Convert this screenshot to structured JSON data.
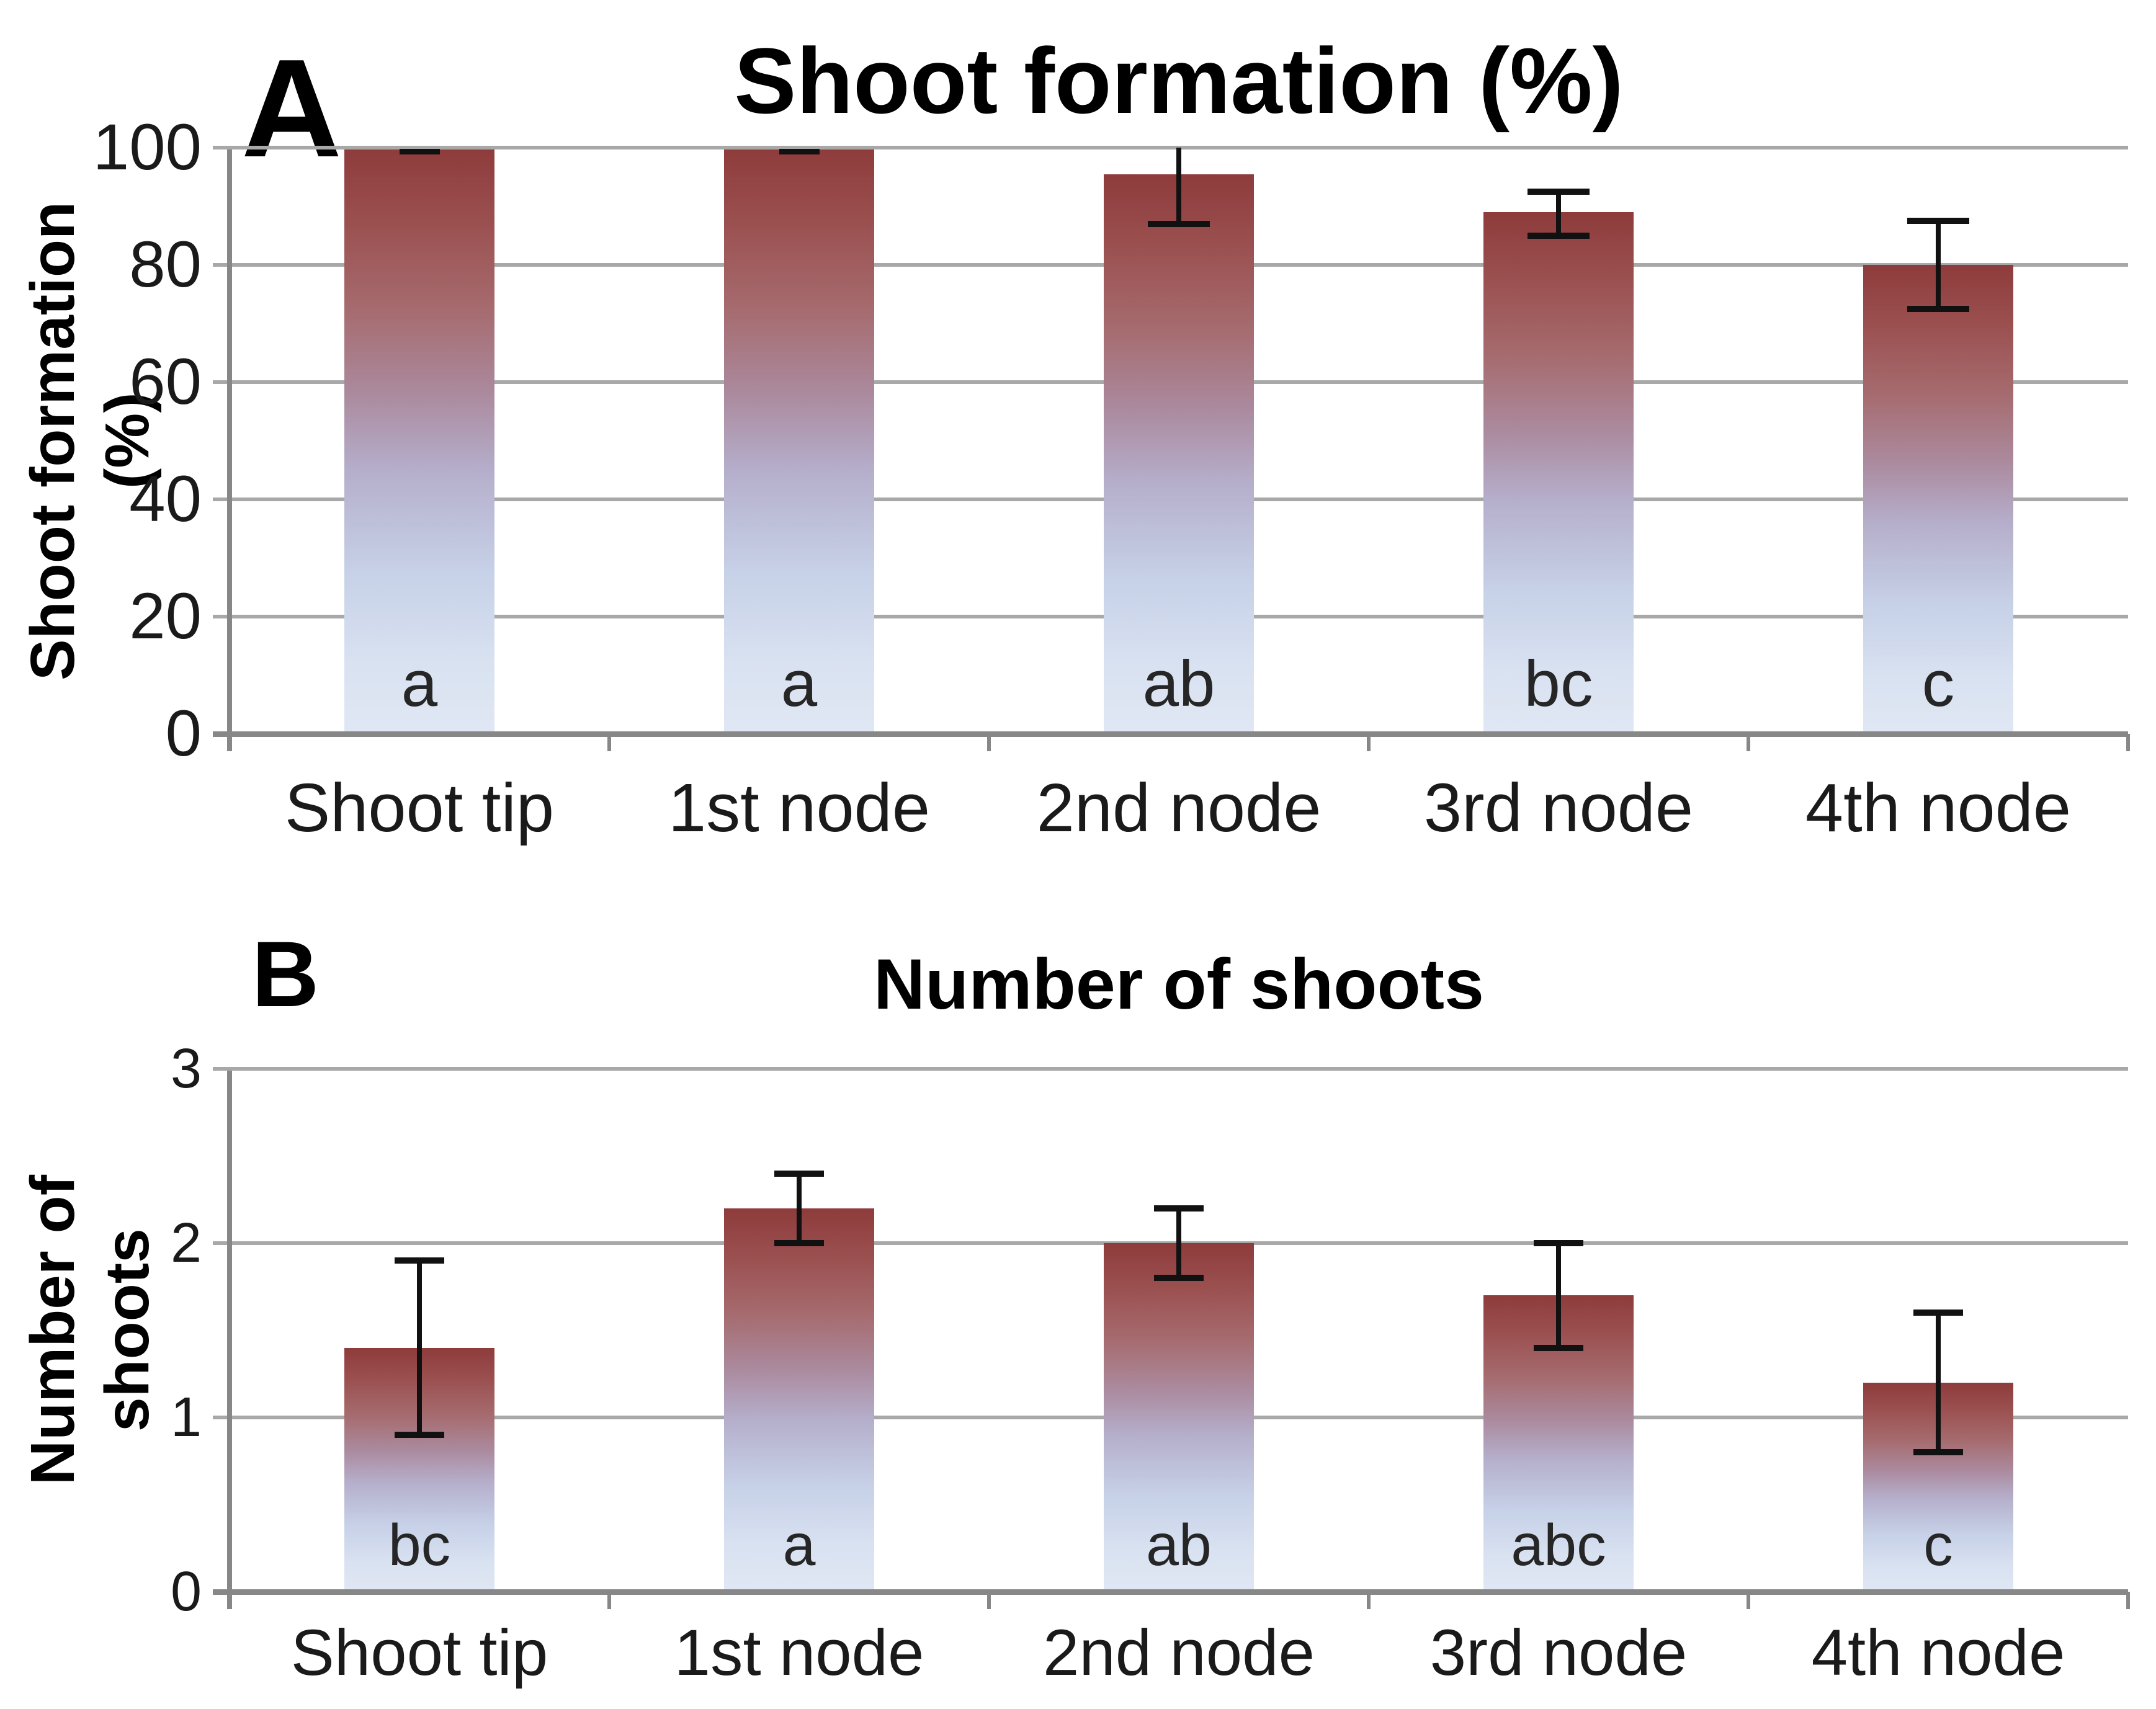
{
  "figure": {
    "background": "#ffffff",
    "panel_labels": [
      "A",
      "B"
    ]
  },
  "style": {
    "bar_gradient_top": "#8e3b3b",
    "bar_gradient_mid": "#b5aecb",
    "bar_gradient_bottom": "#e0e7f4",
    "gridline_color": "#a8a8a8",
    "axis_color": "#878787",
    "error_bar_color": "#111111",
    "text_color": "#1a1a1a"
  },
  "chart_data": [
    {
      "type": "bar",
      "panel_label": "A",
      "title": "Shoot formation (%)",
      "ylabel": "Shoot formation (%)",
      "xlabel": "",
      "categories": [
        "Shoot tip",
        "1st node",
        "2nd node",
        "3rd node",
        "4th node"
      ],
      "values": [
        100,
        100,
        95.5,
        89,
        80
      ],
      "error_low": [
        100,
        100,
        87,
        85,
        72.5
      ],
      "error_high": [
        100,
        100,
        100,
        92.5,
        87.5
      ],
      "sig_letters": [
        "a",
        "a",
        "ab",
        "bc",
        "c"
      ],
      "yticks": [
        0,
        20,
        40,
        60,
        80,
        100
      ],
      "ylim": [
        0,
        100
      ],
      "grid": true,
      "legend": null,
      "error_note": "2nd node upper whisker clipped at 100; 100% bars show zero-length cap at 100"
    },
    {
      "type": "bar",
      "panel_label": "B",
      "title": "Number of shoots",
      "ylabel": "Number of shoots",
      "xlabel": "",
      "categories": [
        "Shoot tip",
        "1st node",
        "2nd node",
        "3rd node",
        "4th node"
      ],
      "values": [
        1.4,
        2.2,
        2.0,
        1.7,
        1.2
      ],
      "error_low": [
        0.9,
        2.0,
        1.8,
        1.4,
        0.8
      ],
      "error_high": [
        1.9,
        2.4,
        2.2,
        2.0,
        1.6
      ],
      "sig_letters": [
        "bc",
        "a",
        "ab",
        "abc",
        "c"
      ],
      "yticks": [
        0,
        1,
        2,
        3
      ],
      "ylim": [
        0,
        3
      ],
      "grid": true,
      "legend": null
    }
  ]
}
